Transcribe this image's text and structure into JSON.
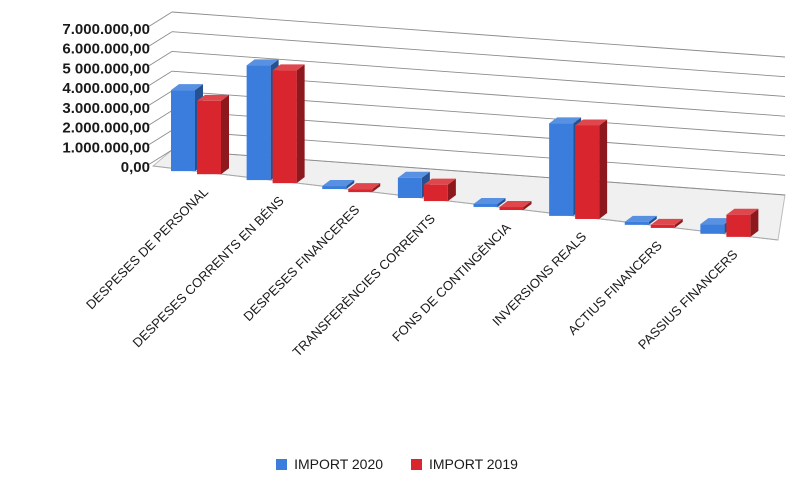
{
  "chart_data": {
    "type": "bar",
    "categories": [
      "DESPESES DE PERSONAL",
      "DESPESES CORRENTS EN BÉNS",
      "DESPESES FINANCERES",
      "TRANSFERÈNCIES CORRENTS",
      "FONS DE CONTINGÈNCIA",
      "INVERSIONS REALS",
      "ACTIUS FINANCERS",
      "PASSIUS FINANCERS"
    ],
    "series": [
      {
        "name": "IMPORT 2020",
        "color": "#3b7ddd",
        "values": [
          4200000,
          5950000,
          20000,
          1050000,
          20000,
          4800000,
          20000,
          500000
        ]
      },
      {
        "name": "IMPORT 2019",
        "color": "#d9262e",
        "values": [
          3800000,
          5850000,
          20000,
          850000,
          20000,
          4850000,
          20000,
          1150000
        ]
      }
    ],
    "y_ticks": [
      "0,00",
      "1.000.000,00",
      "2.000.000,00",
      "3.000.000,00",
      "4.000.000,00",
      "5 000.000,00",
      "6.000.000,00",
      "7.000.000,00"
    ],
    "ylim": [
      0,
      7000000
    ],
    "grid": true,
    "legend_position": "bottom",
    "three_d": true
  }
}
